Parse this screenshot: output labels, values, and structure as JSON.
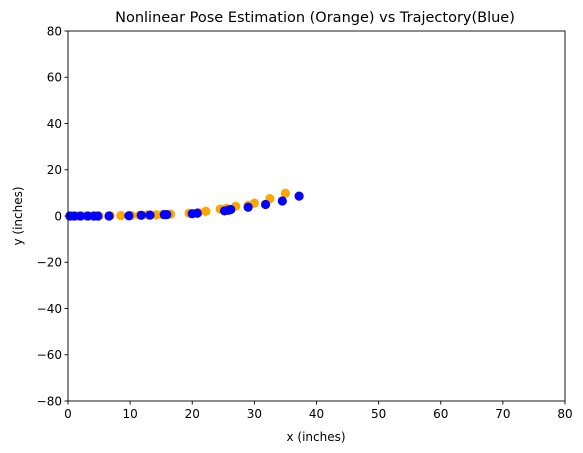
{
  "chart_data": {
    "type": "scatter",
    "title": "Nonlinear Pose Estimation (Orange) vs Trajectory(Blue)",
    "xlabel": "x (inches)",
    "ylabel": "y (inches)",
    "xlim": [
      0,
      80
    ],
    "ylim": [
      -80,
      80
    ],
    "xticks": [
      0,
      10,
      20,
      30,
      40,
      50,
      60,
      70,
      80
    ],
    "yticks": [
      -80,
      -60,
      -40,
      -20,
      0,
      20,
      40,
      60,
      80
    ],
    "grid": false,
    "legend": "none",
    "series": [
      {
        "color": "#ffa500",
        "points": [
          [
            0.5,
            0.0
          ],
          [
            1.5,
            0.0
          ],
          [
            2.8,
            0.0
          ],
          [
            4.0,
            0.0
          ],
          [
            5.0,
            0.0
          ],
          [
            6.8,
            0.1
          ],
          [
            8.5,
            0.2
          ],
          [
            10.2,
            0.2
          ],
          [
            11.5,
            0.3
          ],
          [
            12.8,
            0.5
          ],
          [
            14.2,
            0.5
          ],
          [
            15.2,
            0.6
          ],
          [
            16.5,
            0.8
          ],
          [
            19.5,
            1.2
          ],
          [
            21.0,
            1.5
          ],
          [
            22.2,
            2.0
          ],
          [
            24.5,
            3.0
          ],
          [
            25.5,
            3.3
          ],
          [
            27.0,
            4.2
          ],
          [
            29.0,
            4.6
          ],
          [
            30.0,
            5.5
          ],
          [
            32.5,
            7.5
          ],
          [
            35.0,
            9.8
          ]
        ]
      },
      {
        "color": "#0000ff",
        "points": [
          [
            0.3,
            0.0
          ],
          [
            1.0,
            0.0
          ],
          [
            2.0,
            0.0
          ],
          [
            3.2,
            0.0
          ],
          [
            4.2,
            0.0
          ],
          [
            4.8,
            0.0
          ],
          [
            6.6,
            0.0
          ],
          [
            9.8,
            0.1
          ],
          [
            11.8,
            0.3
          ],
          [
            13.2,
            0.4
          ],
          [
            15.5,
            0.6
          ],
          [
            15.9,
            0.6
          ],
          [
            20.0,
            1.0
          ],
          [
            20.8,
            1.2
          ],
          [
            25.2,
            2.2
          ],
          [
            25.8,
            2.5
          ],
          [
            26.2,
            2.8
          ],
          [
            29.0,
            3.8
          ],
          [
            31.8,
            5.0
          ],
          [
            34.5,
            6.5
          ],
          [
            37.2,
            8.6
          ]
        ]
      }
    ]
  }
}
